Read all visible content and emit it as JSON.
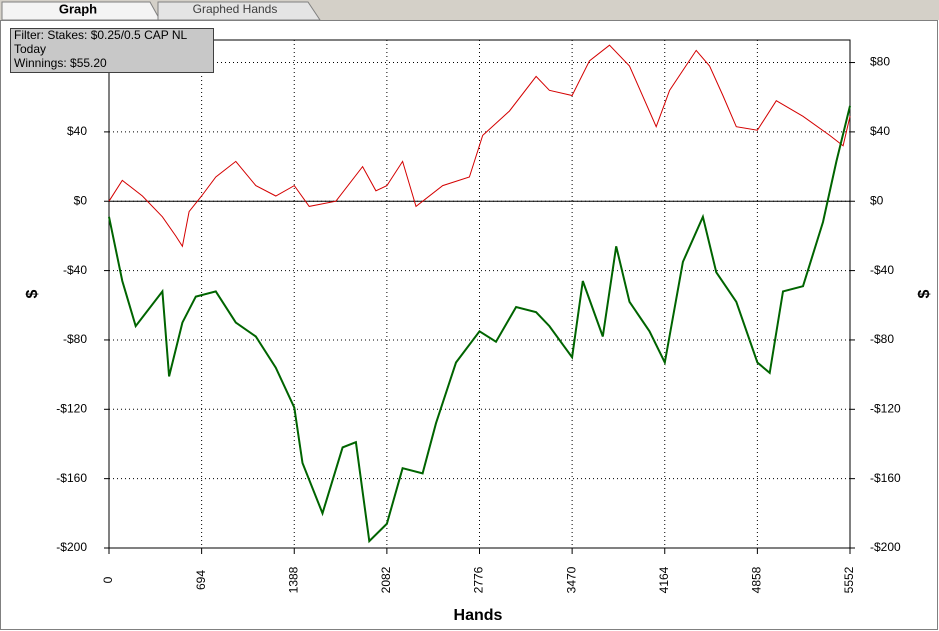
{
  "tabs": [
    "Graph",
    "Graphed Hands"
  ],
  "chart_data": {
    "type": "line",
    "annotations": [
      "Filter: Stakes: $0.25/0.5 CAP NL",
      "Today",
      "Winnings: $55.20"
    ],
    "xlabel": "Hands",
    "ylabel": "$",
    "y2label": "$",
    "xlim": [
      0,
      5552
    ],
    "xticks": [
      0,
      694,
      1388,
      2082,
      2776,
      3470,
      4164,
      4858,
      5552
    ],
    "ylim": [
      -200,
      93
    ],
    "yticks": [
      {
        "value": -200,
        "label": "-$200"
      },
      {
        "value": -160,
        "label": "-$160"
      },
      {
        "value": -120,
        "label": "-$120"
      },
      {
        "value": -80,
        "label": "-$80"
      },
      {
        "value": -40,
        "label": "-$40"
      },
      {
        "value": 0,
        "label": "$0"
      },
      {
        "value": 40,
        "label": "$40"
      },
      {
        "value": 80,
        "label": "$80"
      }
    ],
    "y2lim": [
      -200,
      93
    ],
    "y2ticks": [
      {
        "value": -200,
        "label": "-$200"
      },
      {
        "value": -160,
        "label": "-$160"
      },
      {
        "value": -120,
        "label": "-$120"
      },
      {
        "value": -80,
        "label": "-$80"
      },
      {
        "value": -40,
        "label": "-$40"
      },
      {
        "value": 0,
        "label": "$0"
      },
      {
        "value": 40,
        "label": "$40"
      },
      {
        "value": 80,
        "label": "$80"
      }
    ],
    "grid": true,
    "series": [
      {
        "color": "#d40000",
        "x": [
          0,
          100,
          250,
          400,
          500,
          550,
          600,
          694,
          800,
          950,
          1100,
          1250,
          1388,
          1500,
          1700,
          1900,
          2000,
          2082,
          2200,
          2300,
          2500,
          2700,
          2800,
          3000,
          3200,
          3300,
          3470,
          3600,
          3750,
          3900,
          4100,
          4200,
          4400,
          4500,
          4600,
          4700,
          4858,
          5000,
          5200,
          5400,
          5500,
          5552
        ],
        "values": [
          0,
          12,
          3,
          -9,
          -20,
          -26,
          -6,
          3,
          14,
          23,
          9,
          3,
          9,
          -3,
          0,
          20,
          6,
          9,
          23,
          -3,
          9,
          14,
          38,
          52,
          72,
          64,
          61,
          81,
          90,
          78,
          43,
          64,
          87,
          78,
          61,
          43,
          41,
          58,
          49,
          38,
          32,
          49
        ]
      },
      {
        "color": "#006400",
        "x": [
          0,
          100,
          200,
          400,
          450,
          550,
          650,
          800,
          950,
          1100,
          1250,
          1388,
          1450,
          1600,
          1750,
          1850,
          1950,
          2082,
          2200,
          2350,
          2450,
          2600,
          2776,
          2900,
          3050,
          3200,
          3300,
          3470,
          3550,
          3700,
          3800,
          3900,
          4050,
          4164,
          4300,
          4450,
          4550,
          4700,
          4858,
          4950,
          5050,
          5200,
          5350,
          5450,
          5552
        ],
        "values": [
          -9,
          -46,
          -72,
          -52,
          -101,
          -70,
          -55,
          -52,
          -70,
          -78,
          -96,
          -119,
          -151,
          -180,
          -142,
          -139,
          -196,
          -186,
          -154,
          -157,
          -128,
          -93,
          -75,
          -81,
          -61,
          -64,
          -72,
          -90,
          -46,
          -78,
          -26,
          -58,
          -75,
          -93,
          -35,
          -9,
          -41,
          -58,
          -93,
          -99,
          -52,
          -49,
          -12,
          23,
          55
        ]
      }
    ]
  }
}
